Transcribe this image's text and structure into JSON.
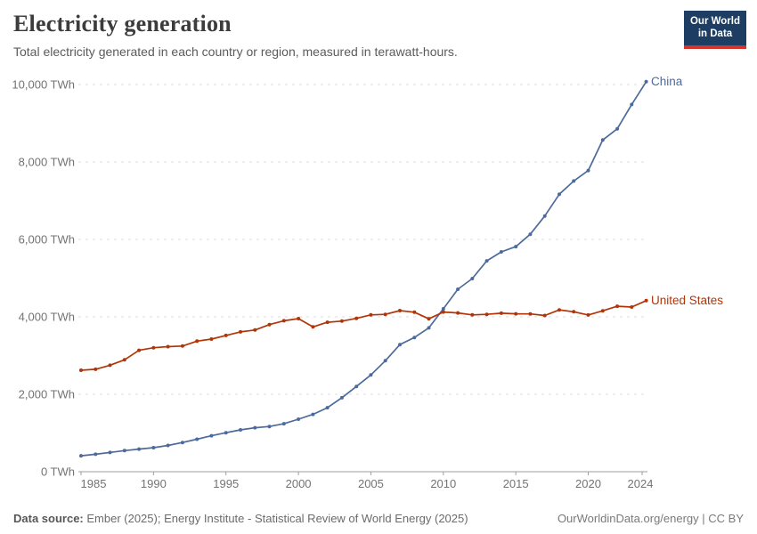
{
  "header": {
    "title": "Electricity generation",
    "subtitle": "Total electricity generated in each country or region, measured in terawatt-hours.",
    "logo": {
      "line1": "Our World",
      "line2": "in Data",
      "bg_color": "#1d3d63",
      "accent_color": "#d5332b"
    }
  },
  "chart_data": {
    "type": "line",
    "title": "Electricity generation",
    "subtitle": "Total electricity generated in each country or region, measured in terawatt-hours.",
    "unit": "TWh",
    "x": [
      1985,
      1986,
      1987,
      1988,
      1989,
      1990,
      1991,
      1992,
      1993,
      1994,
      1995,
      1996,
      1997,
      1998,
      1999,
      2000,
      2001,
      2002,
      2003,
      2004,
      2005,
      2006,
      2007,
      2008,
      2009,
      2010,
      2011,
      2012,
      2013,
      2014,
      2015,
      2016,
      2017,
      2018,
      2019,
      2020,
      2021,
      2022,
      2023,
      2024
    ],
    "series": [
      {
        "name": "China",
        "color": "#4c6a9c",
        "values": [
          411,
          450,
          497,
          545,
          585,
          621,
          678,
          754,
          839,
          928,
          1007,
          1081,
          1136,
          1167,
          1239,
          1356,
          1481,
          1654,
          1911,
          2203,
          2500,
          2866,
          3282,
          3467,
          3715,
          4207,
          4713,
          4988,
          5447,
          5678,
          5814,
          6133,
          6604,
          7166,
          7509,
          7779,
          8567,
          8858,
          9485,
          10073
        ]
      },
      {
        "name": "United States",
        "color": "#b13507",
        "values": [
          2621,
          2645,
          2750,
          2890,
          3135,
          3203,
          3230,
          3245,
          3372,
          3425,
          3520,
          3611,
          3660,
          3800,
          3900,
          3955,
          3740,
          3860,
          3890,
          3960,
          4050,
          4065,
          4160,
          4120,
          3950,
          4125,
          4100,
          4050,
          4065,
          4095,
          4078,
          4076,
          4034,
          4180,
          4131,
          4048,
          4156,
          4274,
          4254,
          4418
        ]
      }
    ],
    "ylim": [
      0,
      10000
    ],
    "yticks": [
      0,
      2000,
      4000,
      6000,
      8000,
      10000
    ],
    "ytick_labels": [
      "0 TWh",
      "2,000 TWh",
      "4,000 TWh",
      "6,000 TWh",
      "8,000 TWh",
      "10,000 TWh"
    ],
    "xticks": [
      1985,
      1990,
      1995,
      2000,
      2005,
      2010,
      2015,
      2020,
      2024
    ],
    "grid": "horizontal dashed",
    "legend": "line-end labels",
    "style": {
      "gridline_color": "#dedede",
      "axis_color": "#9e9e9e",
      "tick_label_color": "#737373",
      "marker_radius": 2,
      "line_width": 1.7
    }
  },
  "footer": {
    "source_label": "Data source:",
    "source_text": " Ember (2025); Energy Institute - Statistical Review of World Energy (2025)",
    "credit": "OurWorldinData.org/energy | CC BY"
  }
}
